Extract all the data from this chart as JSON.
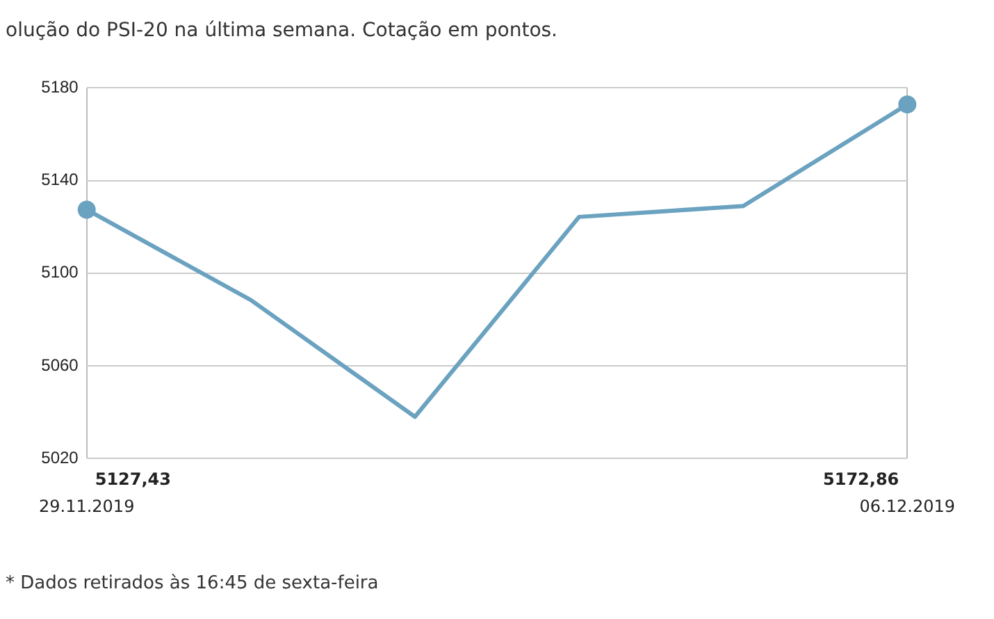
{
  "chart_data": {
    "type": "line",
    "title": "olução do PSI-20 na última semana. Cotação em pontos.",
    "categories": [
      "29.11.2019",
      null,
      null,
      null,
      null,
      "06.12.2019"
    ],
    "series": [
      {
        "color": "#6aa2c0",
        "values": [
          5127.43,
          5088.4,
          5038,
          5124.3,
          5129,
          5172.86
        ],
        "value_labels": [
          "5127,43",
          null,
          null,
          null,
          null,
          "5172,86"
        ],
        "marker": "none"
      },
      {
        "type": "scatter",
        "color": "#6aa2c0",
        "x": [
          "29.11.2019",
          "06.12.2019"
        ],
        "values": [
          5127.43,
          5172.86
        ],
        "marker": "circle"
      }
    ],
    "ylim": [
      5020,
      5180
    ],
    "yticks": [
      5020,
      5060,
      5100,
      5140,
      5180
    ],
    "grid": true,
    "legend": false,
    "line_style": "solid",
    "annotations": [
      "* Dados retirados às 16:45 de sexta-feira"
    ]
  }
}
